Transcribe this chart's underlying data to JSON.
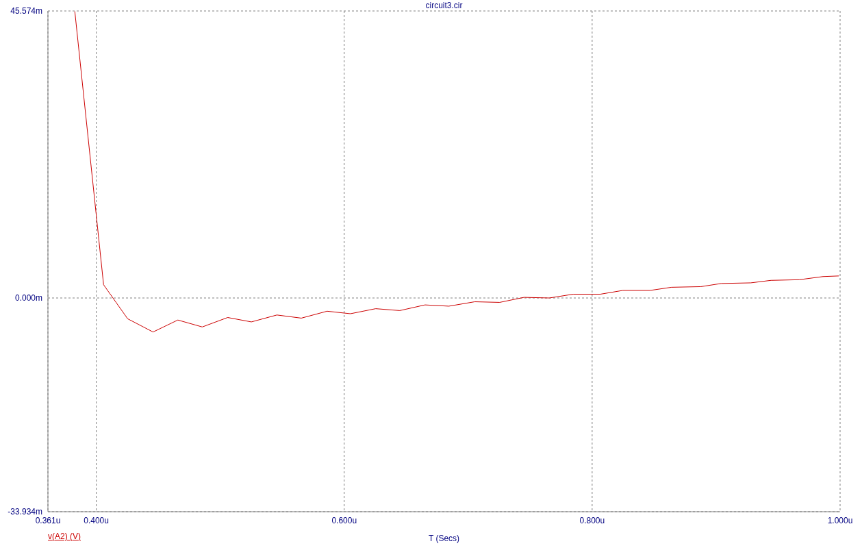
{
  "chart_data": {
    "type": "line",
    "title": "circuit3.cir",
    "xlabel": "T (Secs)",
    "x": [
      0.3827,
      0.4059,
      0.4253,
      0.4458,
      0.4658,
      0.4855,
      0.506,
      0.5251,
      0.5457,
      0.5654,
      0.5862,
      0.605,
      0.6254,
      0.6448,
      0.6652,
      0.6844,
      0.7053,
      0.7254,
      0.7451,
      0.7655,
      0.7847,
      0.8066,
      0.8248,
      0.8467,
      0.864,
      0.8877,
      0.9041,
      0.9279,
      0.9443,
      0.967,
      0.9862,
      0.999
    ],
    "series": [
      {
        "name": "v(A2) (V)",
        "color": "#cc0000",
        "values": [
          45.5,
          2.1,
          -3.3,
          -5.4,
          -3.5,
          -4.6,
          -3.1,
          -3.8,
          -2.7,
          -3.2,
          -2.1,
          -2.5,
          -1.7,
          -2.0,
          -1.1,
          -1.3,
          -0.6,
          -0.7,
          0.1,
          0.0,
          0.6,
          0.6,
          1.2,
          1.2,
          1.7,
          1.8,
          2.3,
          2.4,
          2.8,
          2.9,
          3.4,
          3.5
        ]
      }
    ],
    "xlim": [
      0.361,
      1.0
    ],
    "xticks": [
      {
        "value": 0.361,
        "label": "0.361u"
      },
      {
        "value": 0.4,
        "label": "0.400u"
      },
      {
        "value": 0.6,
        "label": "0.600u"
      },
      {
        "value": 0.8,
        "label": "0.800u"
      },
      {
        "value": 1.0,
        "label": "1.000u"
      }
    ],
    "ylim": [
      -33.934,
      45.574
    ],
    "yticks": [
      {
        "value": -33.934,
        "label": "-33.934m"
      },
      {
        "value": 0,
        "label": "0.000m"
      },
      {
        "value": 45.574,
        "label": "45.574m"
      }
    ],
    "grid": true,
    "line_style": "solid",
    "marker": "none",
    "legend": "bottom left"
  }
}
